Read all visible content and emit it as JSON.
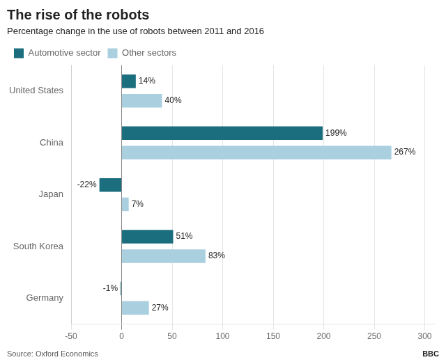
{
  "chart_data": {
    "type": "bar",
    "orientation": "horizontal",
    "title": "The rise of the robots",
    "subtitle": "Percentage change in the use of robots between 2011 and 2016",
    "annotations": [
      "Source: Oxford Economics",
      "BBC"
    ],
    "categories": [
      "United States",
      "China",
      "Japan",
      "South Korea",
      "Germany"
    ],
    "series": [
      {
        "name": "Automotive sector",
        "color": "#1a6e7e",
        "values": [
          14,
          199,
          -22,
          51,
          -1
        ],
        "value_labels": [
          "14%",
          "199%",
          "-22%",
          "51%",
          "-1%"
        ]
      },
      {
        "name": "Other sectors",
        "color": "#aacfdf",
        "values": [
          40,
          267,
          7,
          83,
          27
        ],
        "value_labels": [
          "40%",
          "267%",
          "7%",
          "83%",
          "27%"
        ]
      }
    ],
    "xlim": [
      -50,
      310
    ],
    "xticks": [
      -50,
      0,
      50,
      100,
      150,
      200,
      250,
      300
    ],
    "grid": true,
    "legend": "top",
    "data_labels": true
  }
}
